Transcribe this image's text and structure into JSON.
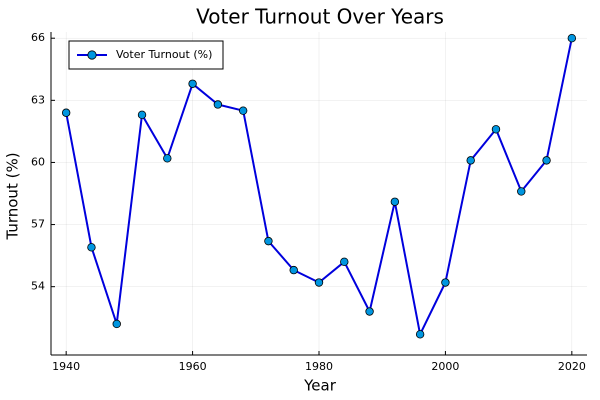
{
  "chart_data": {
    "type": "line",
    "title": "Voter Turnout Over Years",
    "xlabel": "Year",
    "ylabel": "Turnout (%)",
    "xlim": [
      1937.6,
      2022.4
    ],
    "ylim": [
      50.7,
      66.3
    ],
    "xticks": [
      1940,
      1960,
      1980,
      2000,
      2020
    ],
    "yticks": [
      54,
      57,
      60,
      63,
      66
    ],
    "grid": true,
    "legend_position": "top-left",
    "series": [
      {
        "name": "Voter Turnout (%)",
        "color": "#0000dd",
        "marker_color": "#0096e0",
        "x": [
          1940,
          1944,
          1948,
          1952,
          1956,
          1960,
          1964,
          1968,
          1972,
          1976,
          1980,
          1984,
          1988,
          1992,
          1996,
          2000,
          2004,
          2008,
          2012,
          2016,
          2020
        ],
        "y": [
          62.4,
          55.9,
          52.2,
          62.3,
          60.2,
          63.8,
          62.8,
          62.5,
          56.2,
          54.8,
          54.2,
          55.2,
          52.8,
          58.1,
          51.7,
          54.2,
          60.1,
          61.6,
          58.6,
          60.1,
          66.0
        ]
      }
    ]
  }
}
